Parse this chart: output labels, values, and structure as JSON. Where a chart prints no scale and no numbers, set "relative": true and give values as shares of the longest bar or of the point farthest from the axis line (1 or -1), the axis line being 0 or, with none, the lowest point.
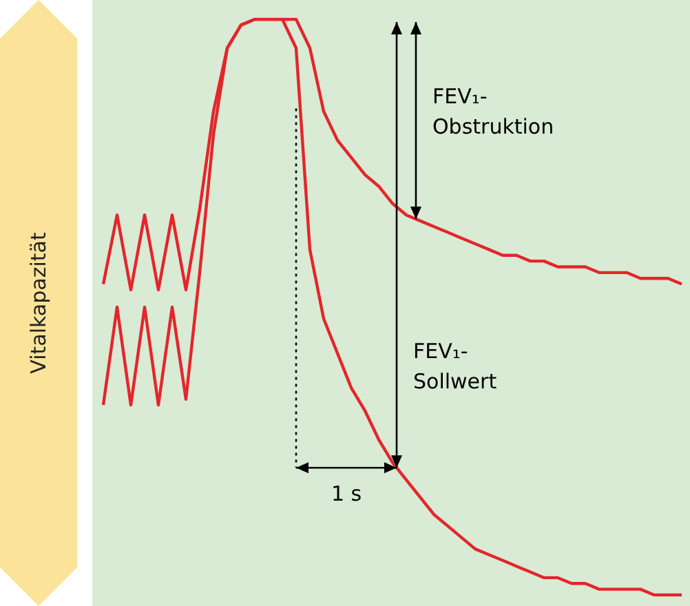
{
  "chart_data": {
    "type": "line",
    "relative": true,
    "ylabel": "Vitalkapazität",
    "marker": "none",
    "line_style": "solid",
    "categories": [
      null,
      null,
      null,
      null,
      null,
      null,
      null,
      null,
      null,
      null,
      null,
      null,
      null,
      null,
      null,
      null,
      null,
      null,
      null,
      null,
      null,
      null,
      null,
      null,
      null,
      null,
      null,
      null,
      null,
      null,
      null,
      null,
      null,
      null,
      null,
      null,
      null,
      null,
      null,
      null,
      null,
      null,
      null
    ],
    "series": [
      {
        "color": "#e3262b",
        "values": [
          0.54,
          0.66,
          0.53,
          0.66,
          0.53,
          0.66,
          0.53,
          0.67,
          0.84,
          0.95,
          0.99,
          1.0,
          1.0,
          1.0,
          1.0,
          0.95,
          0.84,
          0.79,
          0.76,
          0.73,
          0.71,
          0.68,
          0.66,
          0.65,
          0.64,
          0.63,
          0.62,
          0.61,
          0.6,
          0.59,
          0.59,
          0.58,
          0.58,
          0.57,
          0.57,
          0.57,
          0.56,
          0.56,
          0.56,
          0.55,
          0.55,
          0.55,
          0.54
        ]
      },
      {
        "color": "#e3262b",
        "values": [
          0.33,
          0.5,
          0.33,
          0.5,
          0.33,
          0.5,
          0.34,
          0.56,
          0.8,
          0.95,
          0.99,
          1.0,
          1.0,
          1.0,
          0.95,
          0.6,
          0.48,
          0.42,
          0.36,
          0.32,
          0.27,
          0.23,
          0.2,
          0.17,
          0.14,
          0.12,
          0.1,
          0.08,
          0.07,
          0.06,
          0.05,
          0.04,
          0.03,
          0.03,
          0.02,
          0.02,
          0.01,
          0.01,
          0.01,
          0.01,
          0,
          0,
          0
        ]
      }
    ],
    "annotations": [
      "FEV₁-\nObstruktion",
      "FEV₁-\nSollwert",
      "1 s"
    ]
  }
}
